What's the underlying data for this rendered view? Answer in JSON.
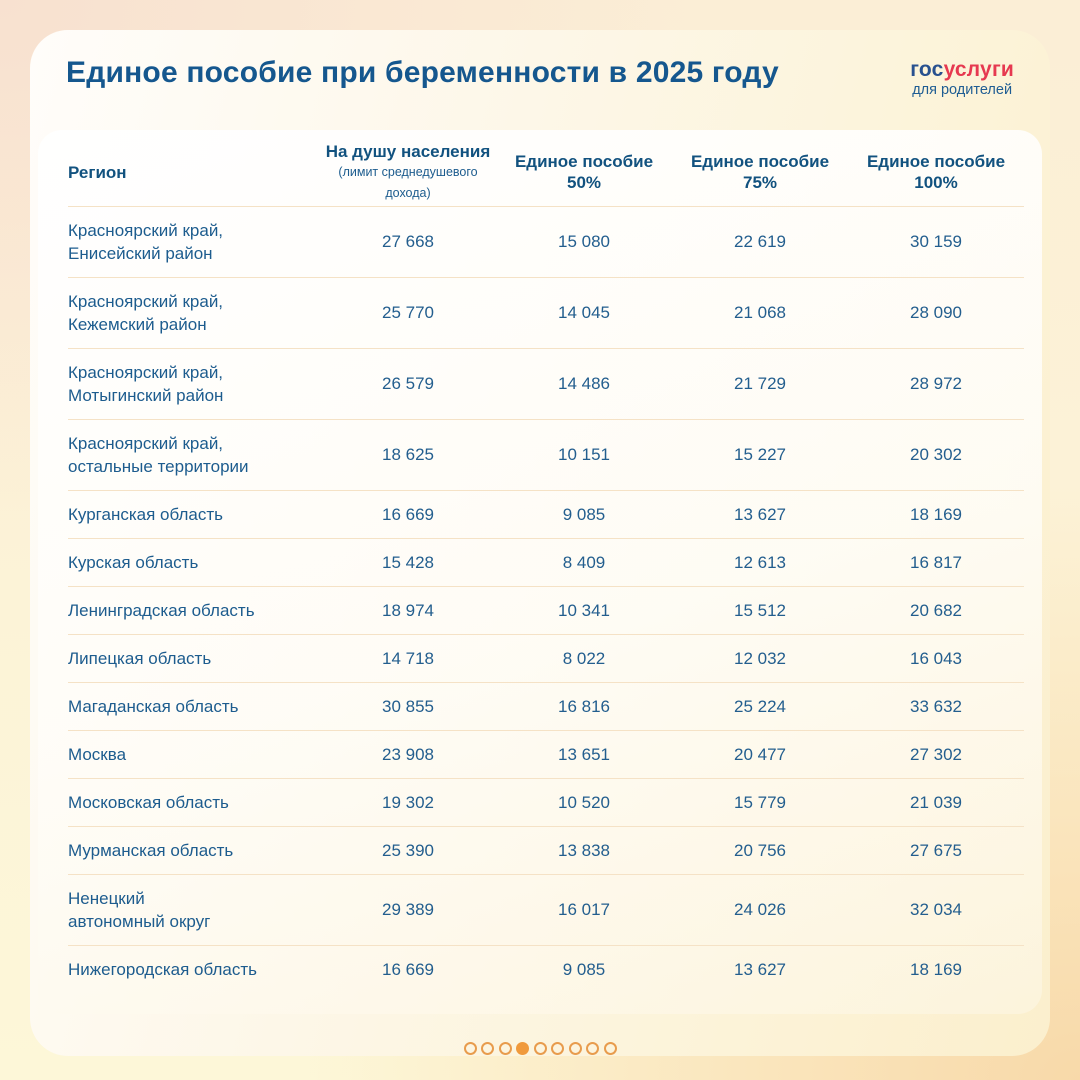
{
  "header": {
    "title": "Единое пособие при беременности в 2025 году",
    "logo": {
      "part1": "гос",
      "part2": "услуги",
      "subtitle": "для родителей"
    }
  },
  "table": {
    "columns": [
      {
        "key": "region",
        "label": "Регион",
        "sub": "",
        "subStyle": ""
      },
      {
        "key": "per-capita",
        "label": "На душу населения",
        "sub": "(лимит среднедушевого дохода)",
        "subStyle": "small"
      },
      {
        "key": "benefit-50",
        "label": "Единое пособие",
        "sub": "50%",
        "subStyle": "pct"
      },
      {
        "key": "benefit-75",
        "label": "Единое пособие",
        "sub": "75%",
        "subStyle": "pct"
      },
      {
        "key": "benefit-100",
        "label": "Единое пособие",
        "sub": "100%",
        "subStyle": "pct"
      }
    ],
    "rows": [
      {
        "region": [
          "Красноярский край,",
          "Енисейский район"
        ],
        "values": [
          "27 668",
          "15 080",
          "22 619",
          "30 159"
        ]
      },
      {
        "region": [
          "Красноярский край,",
          "Кежемский район"
        ],
        "values": [
          "25 770",
          "14 045",
          "21 068",
          "28 090"
        ]
      },
      {
        "region": [
          "Красноярский край,",
          "Мотыгинский район"
        ],
        "values": [
          "26 579",
          "14 486",
          "21 729",
          "28 972"
        ]
      },
      {
        "region": [
          "Красноярский край,",
          "остальные территории"
        ],
        "values": [
          "18 625",
          "10 151",
          "15 227",
          "20 302"
        ]
      },
      {
        "region": [
          "Курганская область"
        ],
        "values": [
          "16 669",
          "9 085",
          "13 627",
          "18 169"
        ]
      },
      {
        "region": [
          "Курская область"
        ],
        "values": [
          "15 428",
          "8 409",
          "12 613",
          "16 817"
        ]
      },
      {
        "region": [
          "Ленинградская область"
        ],
        "values": [
          "18 974",
          "10 341",
          "15 512",
          "20 682"
        ]
      },
      {
        "region": [
          "Липецкая область"
        ],
        "values": [
          "14 718",
          "8 022",
          "12 032",
          "16 043"
        ]
      },
      {
        "region": [
          "Магаданская область"
        ],
        "values": [
          "30 855",
          "16 816",
          "25 224",
          "33 632"
        ]
      },
      {
        "region": [
          "Москва"
        ],
        "values": [
          "23 908",
          "13 651",
          "20 477",
          "27 302"
        ]
      },
      {
        "region": [
          "Московская область"
        ],
        "values": [
          "19 302",
          "10 520",
          "15 779",
          "21 039"
        ]
      },
      {
        "region": [
          "Мурманская область"
        ],
        "values": [
          "25 390",
          "13 838",
          "20 756",
          "27 675"
        ]
      },
      {
        "region": [
          "Ненецкий",
          "автономный округ"
        ],
        "values": [
          "29 389",
          "16 017",
          "24 026",
          "32 034"
        ]
      },
      {
        "region": [
          "Нижегородская область"
        ],
        "values": [
          "16 669",
          "9 085",
          "13 627",
          "18 169"
        ]
      }
    ]
  },
  "pagination": {
    "count": 9,
    "active_index": 3
  },
  "colors": {
    "title_blue": "#15578e",
    "text_blue": "#235e8e",
    "logo_blue": "#28518f",
    "logo_red": "#e63950",
    "separator": "#f5e2c6",
    "dot_orange": "#f09a3c"
  }
}
